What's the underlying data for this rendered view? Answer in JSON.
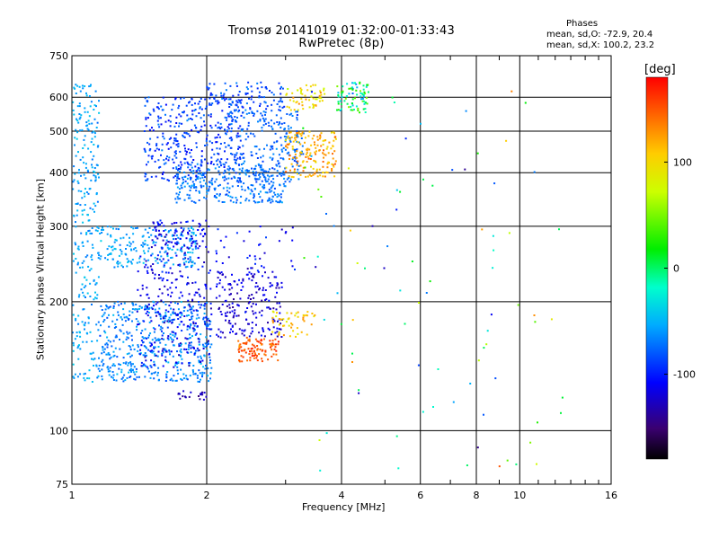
{
  "header": {
    "title_line1": "Tromsø 20141019 01:32:00-01:33:43",
    "title_line2": "RwPretec (8p)",
    "stats_heading": "Phases",
    "stats_O": "mean, sd,O: -72.9, 20.4",
    "stats_X": "mean, sd,X: 100.2, 23.2"
  },
  "chart_data": {
    "type": "scatter",
    "xlabel": "Frequency [MHz]",
    "ylabel": "Stationary phase Virtual Height [km]",
    "xscale": "log",
    "yscale": "log",
    "xlim": [
      1,
      16
    ],
    "ylim": [
      75,
      750
    ],
    "xticks": [
      1,
      2,
      4,
      6,
      8,
      10,
      16
    ],
    "xtick_labels": [
      "1",
      "2",
      "4",
      "6",
      "8",
      "10",
      "16"
    ],
    "yticks": [
      75,
      100,
      200,
      300,
      400,
      500,
      600,
      750
    ],
    "ytick_labels": [
      "75",
      "100",
      "200",
      "300",
      "400",
      "500",
      "600",
      "750"
    ],
    "grid": true,
    "colorbar": {
      "label": "[deg]",
      "range": [
        -180,
        180
      ],
      "ticks": [
        100,
        0,
        -100
      ],
      "tick_labels": [
        "100",
        "0",
        "-100"
      ]
    },
    "clusters": [
      {
        "fmin": 1.0,
        "fmax": 1.15,
        "hmin": 130,
        "hmax": 650,
        "phase": -55,
        "spread": 20,
        "count": 300
      },
      {
        "fmin": 1.15,
        "fmax": 2.05,
        "hmin": 130,
        "hmax": 200,
        "phase": -65,
        "spread": 25,
        "count": 500
      },
      {
        "fmin": 1.4,
        "fmax": 2.05,
        "hmin": 140,
        "hmax": 260,
        "phase": -110,
        "spread": 30,
        "count": 260
      },
      {
        "fmin": 1.15,
        "fmax": 1.9,
        "hmin": 240,
        "hmax": 300,
        "phase": -55,
        "spread": 20,
        "count": 200
      },
      {
        "fmin": 1.5,
        "fmax": 2.0,
        "hmin": 265,
        "hmax": 310,
        "phase": -110,
        "spread": 25,
        "count": 90
      },
      {
        "fmin": 1.45,
        "fmax": 2.4,
        "hmin": 380,
        "hmax": 600,
        "phase": -90,
        "spread": 30,
        "count": 380
      },
      {
        "fmin": 1.7,
        "fmax": 3.0,
        "hmin": 340,
        "hmax": 410,
        "phase": -70,
        "spread": 20,
        "count": 260
      },
      {
        "fmin": 2.2,
        "fmax": 3.3,
        "hmin": 380,
        "hmax": 560,
        "phase": -75,
        "spread": 20,
        "count": 260
      },
      {
        "fmin": 2.0,
        "fmax": 3.0,
        "hmin": 560,
        "hmax": 650,
        "phase": -85,
        "spread": 25,
        "count": 90
      },
      {
        "fmin": 3.0,
        "fmax": 3.9,
        "hmin": 390,
        "hmax": 500,
        "phase": 120,
        "spread": 35,
        "count": 160
      },
      {
        "fmin": 3.0,
        "fmax": 3.7,
        "hmin": 560,
        "hmax": 650,
        "phase": 100,
        "spread": 40,
        "count": 60
      },
      {
        "fmin": 3.9,
        "fmax": 4.6,
        "hmin": 550,
        "hmax": 650,
        "phase": 0,
        "spread": 80,
        "count": 80
      },
      {
        "fmin": 2.1,
        "fmax": 2.95,
        "hmin": 165,
        "hmax": 235,
        "phase": -120,
        "spread": 25,
        "count": 200
      },
      {
        "fmin": 2.35,
        "fmax": 2.9,
        "hmin": 145,
        "hmax": 165,
        "phase": 150,
        "spread": 25,
        "count": 100
      },
      {
        "fmin": 2.8,
        "fmax": 3.5,
        "hmin": 165,
        "hmax": 190,
        "phase": 110,
        "spread": 40,
        "count": 50
      },
      {
        "fmin": 2.0,
        "fmax": 3.2,
        "hmin": 235,
        "hmax": 300,
        "phase": -110,
        "spread": 30,
        "count": 40
      },
      {
        "fmin": 1.7,
        "fmax": 2.0,
        "hmin": 118,
        "hmax": 124,
        "phase": -130,
        "spread": 20,
        "count": 20
      },
      {
        "fmin": 3.2,
        "fmax": 12.5,
        "hmin": 80,
        "hmax": 620,
        "phase": 0,
        "spread": 170,
        "count": 90
      }
    ]
  }
}
